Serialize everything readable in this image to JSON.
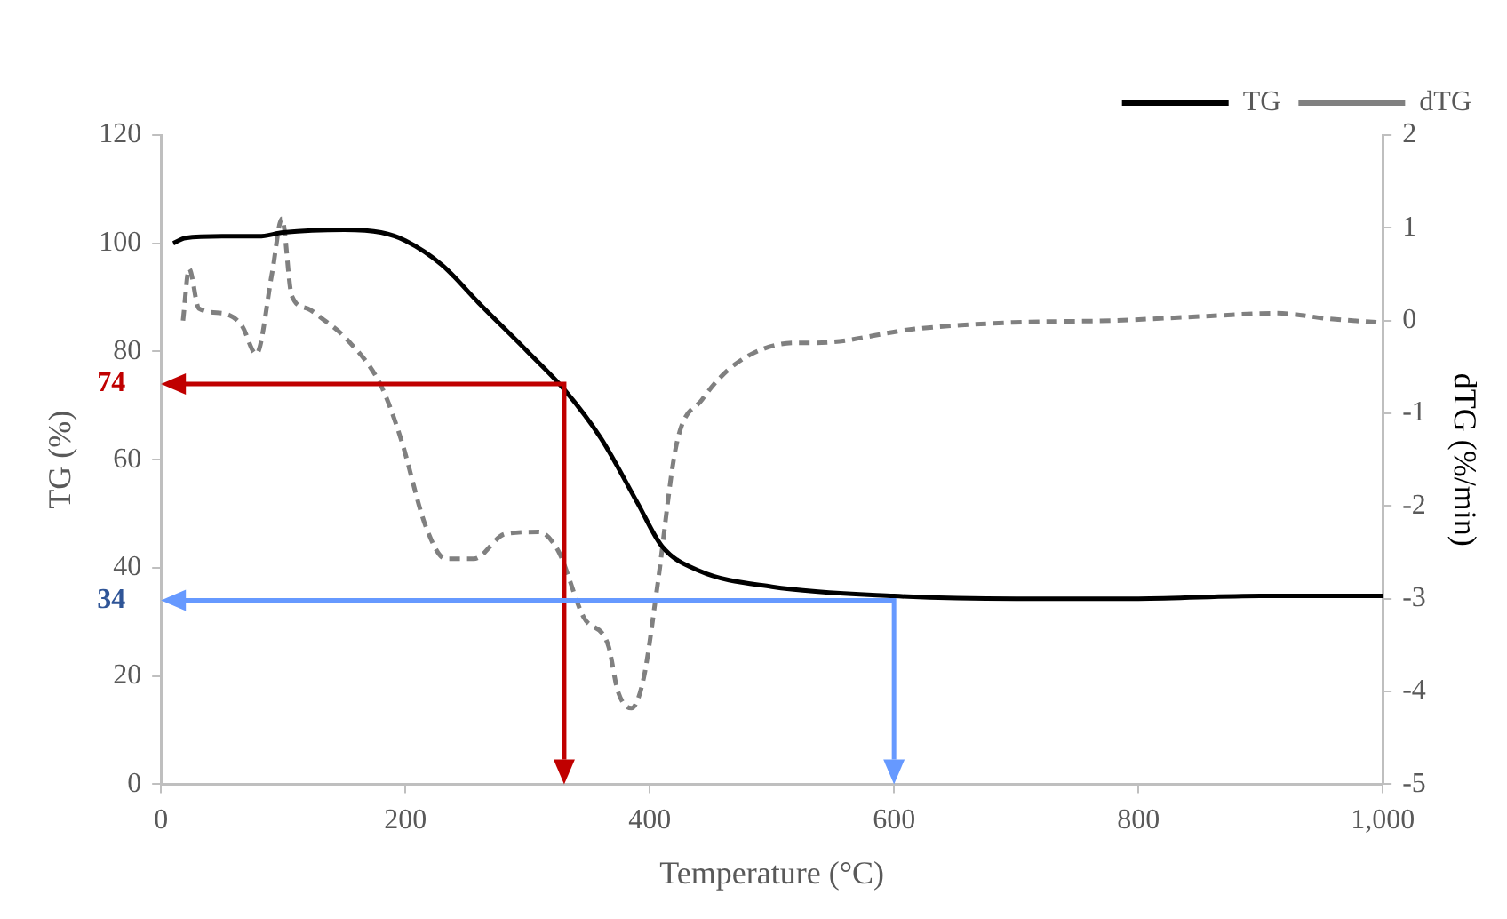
{
  "chart_data": {
    "type": "line",
    "xlabel": "Temperature (°C)",
    "ylabel": "TG (%)",
    "y2label": "dTG (%/min)",
    "xlim": [
      0,
      1000
    ],
    "xticks": [
      0,
      200,
      400,
      600,
      800,
      {
        "value": 1000,
        "label": "1,000"
      }
    ],
    "ylim": [
      0,
      120
    ],
    "yticks": [
      0,
      20,
      40,
      60,
      80,
      100,
      120
    ],
    "y2lim": [
      -5,
      2
    ],
    "y2ticks": [
      -5,
      -4,
      -3,
      -2,
      -1,
      0,
      1,
      2
    ],
    "grid": false,
    "legend": "top right",
    "marker": "none",
    "series": [
      {
        "name": "TG",
        "color": "#000000",
        "line_style": "solid",
        "x": [
          10,
          20,
          50,
          80,
          100,
          150,
          180,
          200,
          230,
          260,
          300,
          330,
          360,
          390,
          410,
          440,
          500,
          600,
          700,
          800,
          900,
          1000
        ],
        "values": [
          100,
          101,
          101.3,
          101.3,
          102,
          102.5,
          102,
          100.5,
          96,
          89,
          80,
          73,
          64,
          52,
          44,
          39.5,
          36.5,
          34.8,
          34.3,
          34.3,
          34.8,
          34.8
        ]
      },
      {
        "name": "dTG",
        "color": "#808080",
        "line_style": "dashed",
        "axis": "y2",
        "x": [
          18,
          23,
          31,
          50,
          66,
          78,
          91,
          99,
          107,
          120,
          131,
          152,
          180,
          196,
          217,
          233,
          256,
          282,
          309,
          325,
          346,
          366,
          374,
          385,
          395,
          406,
          422,
          443,
          471,
          519,
          536,
          617,
          697,
          778,
          859,
          913,
          956,
          997
        ],
        "values": [
          0,
          0.56,
          0.13,
          0.08,
          -0.05,
          -0.36,
          0.52,
          1.1,
          0.27,
          0.13,
          0.03,
          -0.2,
          -0.7,
          -1.26,
          -2.23,
          -2.57,
          -2.57,
          -2.3,
          -2.28,
          -2.48,
          -3.2,
          -3.5,
          -4,
          -4.18,
          -3.86,
          -2.89,
          -1.33,
          -0.85,
          -0.46,
          -0.24,
          -0.24,
          -0.09,
          -0.02,
          0,
          0.05,
          0.08,
          0.02,
          -0.02
        ]
      }
    ],
    "annotations": [
      "74",
      "34"
    ]
  }
}
